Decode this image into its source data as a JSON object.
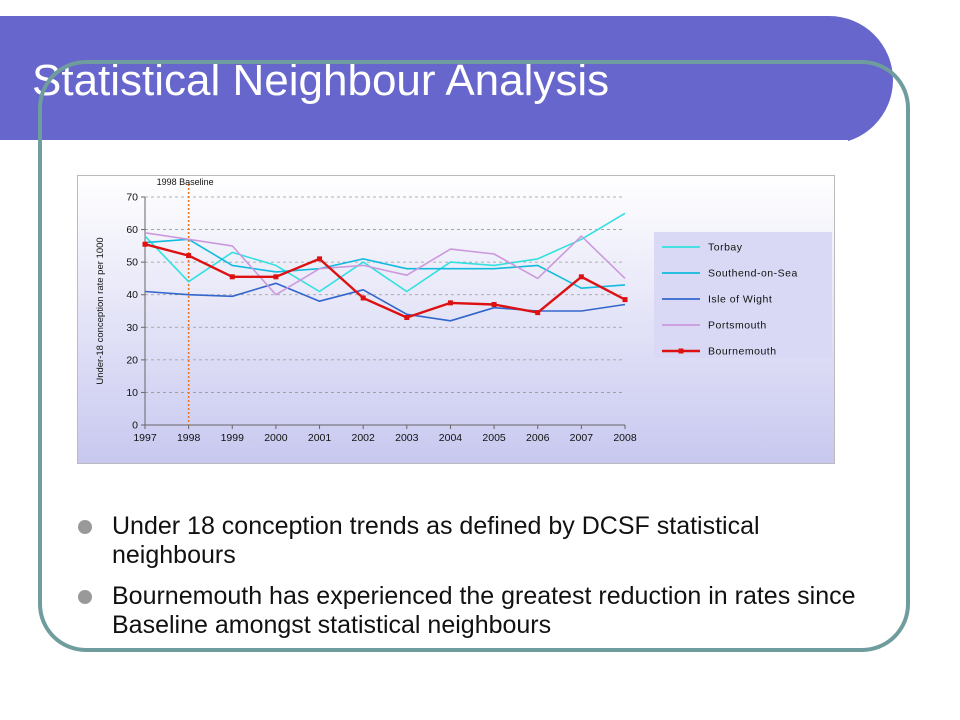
{
  "slide": {
    "title": "Statistical Neighbour Analysis",
    "bullets": [
      "Under 18 conception trends as defined by DCSF statistical neighbours",
      "Bournemouth has experienced the greatest reduction in rates since Baseline amongst statistical neighbours"
    ]
  },
  "colors": {
    "title_bar": "#6666cc",
    "frame": "#6f9c9c",
    "torbay": "#33e0e0",
    "southend": "#11bbdd",
    "isle_of_wight": "#3366cc",
    "portsmouth": "#cc99dd",
    "bournemouth": "#dd1111",
    "baseline": "#ee7722"
  },
  "chart_data": {
    "type": "line",
    "title": "",
    "xlabel": "",
    "ylabel": "Under-18 conception rate per 1000",
    "ylim": [
      0,
      70
    ],
    "yticks": [
      0,
      10,
      20,
      30,
      40,
      50,
      60,
      70
    ],
    "grid": true,
    "legend": "right",
    "x": [
      "1997",
      "1998",
      "1999",
      "2000",
      "2001",
      "2002",
      "2003",
      "2004",
      "2005",
      "2006",
      "2007",
      "2008"
    ],
    "annotation": {
      "label": "1998 Baseline",
      "x": "1998"
    },
    "series": [
      {
        "name": "Torbay",
        "color": "#33e0e0",
        "marker": false,
        "values": [
          58,
          44,
          53,
          49,
          41,
          50,
          41,
          50,
          49,
          51,
          57,
          65
        ]
      },
      {
        "name": "Southend-on-Sea",
        "color": "#11bbdd",
        "marker": false,
        "values": [
          56,
          57,
          49,
          47,
          48,
          51,
          48,
          48,
          48,
          49,
          42,
          43
        ]
      },
      {
        "name": "Isle of Wight",
        "color": "#3366cc",
        "marker": false,
        "values": [
          41,
          40,
          39.5,
          43.5,
          38,
          41.5,
          34,
          32,
          36,
          35,
          35,
          37
        ]
      },
      {
        "name": "Portsmouth",
        "color": "#cc99dd",
        "marker": false,
        "values": [
          59,
          57,
          55,
          40,
          48,
          49,
          46,
          54,
          52.5,
          45,
          58,
          45
        ]
      },
      {
        "name": "Bournemouth",
        "color": "#dd1111",
        "marker": true,
        "values": [
          55.5,
          52,
          45.5,
          45.5,
          51,
          39,
          33,
          37.5,
          37,
          34.5,
          45.5,
          38.5
        ]
      }
    ]
  }
}
